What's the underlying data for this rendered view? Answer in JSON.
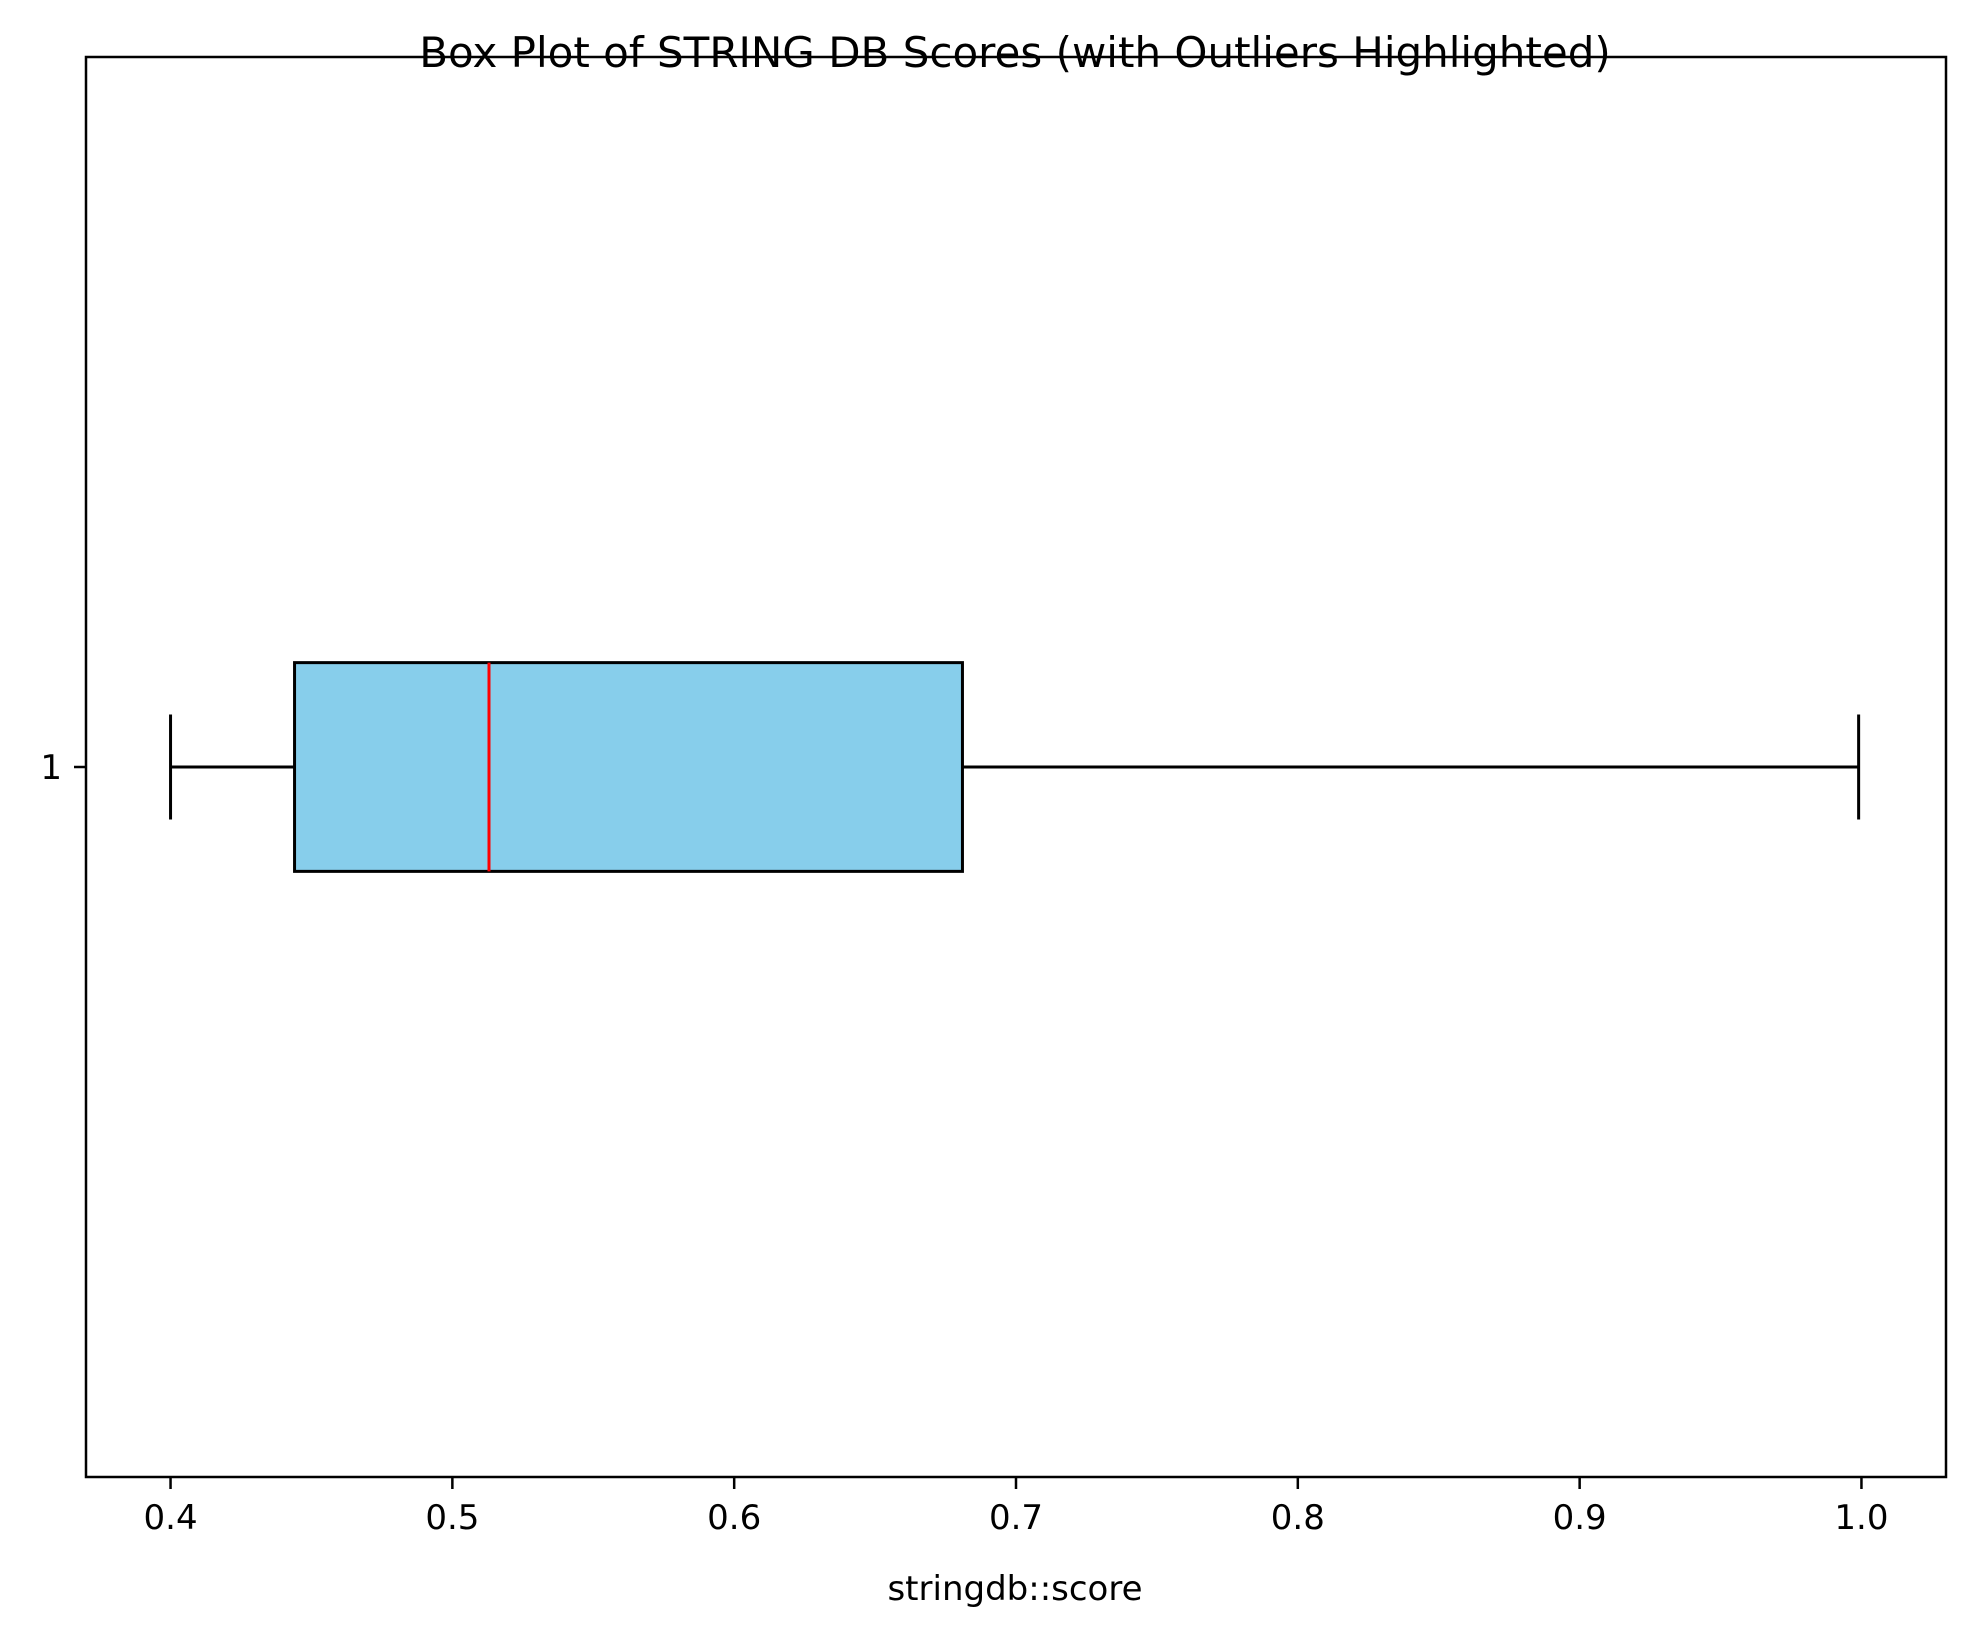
{
  "chart_data": {
    "type": "box",
    "orientation": "horizontal",
    "title": "Box Plot of STRING DB Scores (with Outliers Highlighted)",
    "xlabel": "stringdb::score",
    "ylabel": "",
    "xlim": [
      0.37,
      1.03
    ],
    "xticks": [
      0.4,
      0.5,
      0.6,
      0.7,
      0.8,
      0.9,
      1.0
    ],
    "xtick_labels": [
      "0.4",
      "0.5",
      "0.6",
      "0.7",
      "0.8",
      "0.9",
      "1.0"
    ],
    "ytick_labels": [
      "1"
    ],
    "grid": false,
    "boxes": [
      {
        "label": "1",
        "whisker_low": 0.4,
        "q1": 0.444,
        "median": 0.513,
        "q3": 0.681,
        "whisker_high": 0.999,
        "outliers": []
      }
    ],
    "colors": {
      "box_fill": "#87ceeb",
      "box_edge": "#000000",
      "median": "#ff0000",
      "whisker": "#000000"
    }
  }
}
